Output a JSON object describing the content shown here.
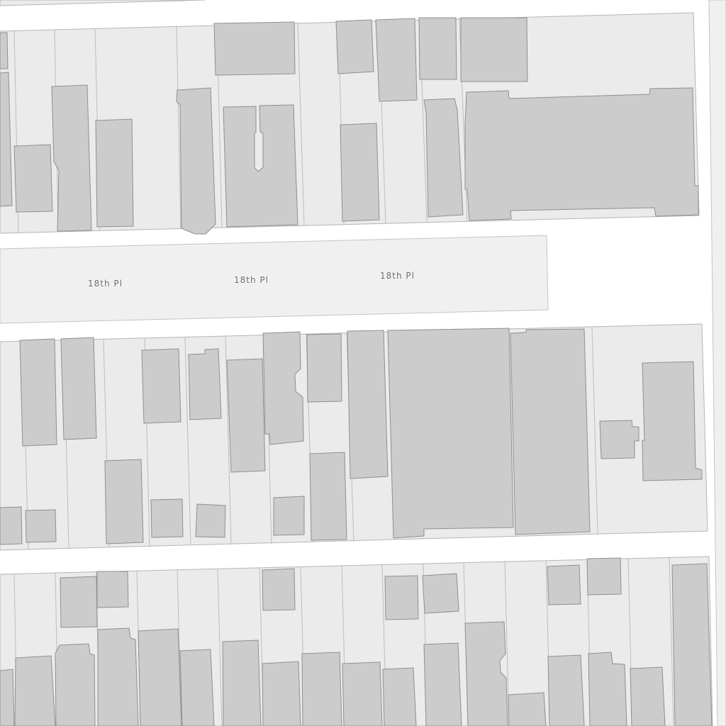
{
  "map": {
    "streets": [
      {
        "name": "18th Pl",
        "labels": [
          "18th Pl",
          "18th Pl"
        ]
      }
    ],
    "colors": {
      "background": "#ffffff",
      "block": "#ebebeb",
      "street": "#f0f0f0",
      "building": "#cccccc",
      "building_outline": "#8f8f8f"
    }
  }
}
